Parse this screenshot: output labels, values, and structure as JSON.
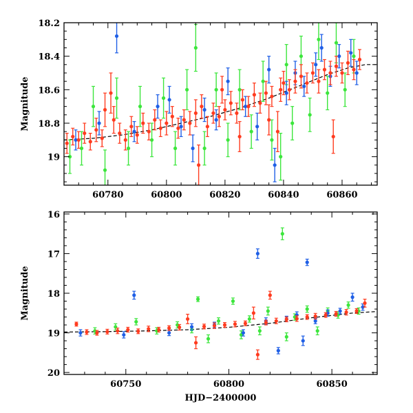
{
  "chart_data": [
    {
      "type": "scatter",
      "panel": "top",
      "ylabel": "Magnitude",
      "xlabel": "",
      "xlim": [
        60765,
        60872
      ],
      "ylim": [
        19.17,
        18.2
      ],
      "y_inverted": true,
      "x_ticks": [
        60780,
        60800,
        60820,
        60840,
        60860
      ],
      "y_ticks": [
        18.2,
        18.4,
        18.6,
        18.8,
        19
      ],
      "y_tick_labels": [
        "18.2",
        "18.4",
        "18.6",
        "18.8",
        "19"
      ],
      "colors": {
        "red": "#ff3b1f",
        "green": "#3ce63c",
        "blue": "#1f5fe6",
        "fit": "#000000"
      },
      "fit_curve": {
        "style": "dashed",
        "x": [
          60765,
          60775,
          60785,
          60795,
          60805,
          60815,
          60825,
          60835,
          60845,
          60855,
          60862,
          60868,
          60872
        ],
        "y": [
          18.9,
          18.89,
          18.87,
          18.84,
          18.8,
          18.76,
          18.71,
          18.65,
          18.58,
          18.51,
          18.47,
          18.45,
          18.45
        ]
      },
      "series": [
        {
          "color": "red",
          "points": [
            [
              60766,
              18.92,
              0.06
            ],
            [
              60768,
              18.88,
              0.05
            ],
            [
              60770,
              18.9,
              0.05
            ],
            [
              60772,
              18.86,
              0.06
            ],
            [
              60774,
              18.91,
              0.05
            ],
            [
              60776,
              18.84,
              0.07
            ],
            [
              60778,
              18.89,
              0.05
            ],
            [
              60779,
              18.72,
              0.1
            ],
            [
              60781,
              18.62,
              0.12
            ],
            [
              60782,
              18.78,
              0.08
            ],
            [
              60784,
              18.86,
              0.06
            ],
            [
              60786,
              18.9,
              0.06
            ],
            [
              60788,
              18.82,
              0.06
            ],
            [
              60790,
              18.87,
              0.05
            ],
            [
              60792,
              18.8,
              0.06
            ],
            [
              60794,
              18.85,
              0.05
            ],
            [
              60796,
              18.78,
              0.06
            ],
            [
              60798,
              18.83,
              0.05
            ],
            [
              60800,
              18.8,
              0.07
            ],
            [
              60802,
              18.76,
              0.06
            ],
            [
              60804,
              18.83,
              0.06
            ],
            [
              60806,
              18.78,
              0.06
            ],
            [
              60808,
              18.8,
              0.07
            ],
            [
              60810,
              18.74,
              0.08
            ],
            [
              60811,
              19.05,
              0.12
            ],
            [
              60812,
              18.7,
              0.07
            ],
            [
              60814,
              18.82,
              0.06
            ],
            [
              60816,
              18.74,
              0.06
            ],
            [
              60818,
              18.76,
              0.06
            ],
            [
              60819,
              18.6,
              0.08
            ],
            [
              60820,
              18.72,
              0.06
            ],
            [
              60822,
              18.68,
              0.07
            ],
            [
              60824,
              18.74,
              0.06
            ],
            [
              60825,
              18.88,
              0.09
            ],
            [
              60826,
              18.66,
              0.06
            ],
            [
              60828,
              18.7,
              0.06
            ],
            [
              60830,
              18.63,
              0.07
            ],
            [
              60832,
              18.68,
              0.06
            ],
            [
              60834,
              18.62,
              0.07
            ],
            [
              60835,
              18.78,
              0.09
            ],
            [
              60836,
              18.64,
              0.06
            ],
            [
              60838,
              18.85,
              0.12
            ],
            [
              60839,
              18.6,
              0.07
            ],
            [
              60840,
              18.56,
              0.07
            ],
            [
              60842,
              18.6,
              0.06
            ],
            [
              60844,
              18.55,
              0.07
            ],
            [
              60846,
              18.52,
              0.07
            ],
            [
              60848,
              18.56,
              0.06
            ],
            [
              60850,
              18.5,
              0.06
            ],
            [
              60852,
              18.55,
              0.07
            ],
            [
              60854,
              18.48,
              0.06
            ],
            [
              60856,
              18.5,
              0.07
            ],
            [
              60857,
              18.88,
              0.1
            ],
            [
              60858,
              18.46,
              0.06
            ],
            [
              60860,
              18.5,
              0.06
            ],
            [
              60862,
              18.44,
              0.07
            ],
            [
              60864,
              18.48,
              0.06
            ],
            [
              60866,
              18.42,
              0.06
            ]
          ]
        },
        {
          "color": "green",
          "points": [
            [
              60767,
              19.0,
              0.1
            ],
            [
              60771,
              18.95,
              0.1
            ],
            [
              60775,
              18.7,
              0.12
            ],
            [
              60779,
              19.08,
              0.12
            ],
            [
              60783,
              18.65,
              0.12
            ],
            [
              60787,
              18.95,
              0.1
            ],
            [
              60791,
              18.7,
              0.12
            ],
            [
              60795,
              18.9,
              0.1
            ],
            [
              60799,
              18.65,
              0.12
            ],
            [
              60803,
              18.95,
              0.1
            ],
            [
              60807,
              18.6,
              0.12
            ],
            [
              60810,
              18.35,
              0.14
            ],
            [
              60813,
              18.95,
              0.1
            ],
            [
              60817,
              18.6,
              0.1
            ],
            [
              60821,
              18.9,
              0.1
            ],
            [
              60825,
              18.6,
              0.12
            ],
            [
              60829,
              18.85,
              0.1
            ],
            [
              60833,
              18.55,
              0.12
            ],
            [
              60836,
              18.9,
              0.12
            ],
            [
              60839,
              19.0,
              0.14
            ],
            [
              60841,
              18.45,
              0.12
            ],
            [
              60843,
              18.8,
              0.1
            ],
            [
              60846,
              18.4,
              0.12
            ],
            [
              60849,
              18.75,
              0.1
            ],
            [
              60852,
              18.3,
              0.12
            ],
            [
              60855,
              18.62,
              0.1
            ],
            [
              60858,
              18.32,
              0.12
            ],
            [
              60861,
              18.6,
              0.1
            ],
            [
              60864,
              18.4,
              0.1
            ]
          ]
        },
        {
          "color": "blue",
          "points": [
            [
              60769,
              18.9,
              0.06
            ],
            [
              60777,
              18.8,
              0.07
            ],
            [
              60783,
              18.28,
              0.1
            ],
            [
              60789,
              18.85,
              0.06
            ],
            [
              60797,
              18.7,
              0.07
            ],
            [
              60801,
              18.66,
              0.08
            ],
            [
              60805,
              18.82,
              0.06
            ],
            [
              60809,
              18.95,
              0.08
            ],
            [
              60813,
              18.72,
              0.07
            ],
            [
              60817,
              18.78,
              0.06
            ],
            [
              60821,
              18.55,
              0.08
            ],
            [
              60827,
              18.7,
              0.06
            ],
            [
              60831,
              18.82,
              0.08
            ],
            [
              60835,
              18.48,
              0.08
            ],
            [
              60837,
              19.05,
              0.1
            ],
            [
              60841,
              18.62,
              0.07
            ],
            [
              60844,
              18.5,
              0.07
            ],
            [
              60847,
              18.58,
              0.06
            ],
            [
              60851,
              18.45,
              0.07
            ],
            [
              60853,
              18.35,
              0.08
            ],
            [
              60856,
              18.52,
              0.06
            ],
            [
              60859,
              18.4,
              0.07
            ],
            [
              60863,
              18.38,
              0.08
            ],
            [
              60865,
              18.5,
              0.07
            ]
          ]
        }
      ]
    },
    {
      "type": "scatter",
      "panel": "bottom",
      "ylabel": "Magnitude",
      "xlabel": "HJD−2400000",
      "xlim": [
        60720,
        60872
      ],
      "ylim": [
        20.05,
        15.95
      ],
      "y_inverted": true,
      "x_ticks": [
        60750,
        60800,
        60850
      ],
      "y_ticks": [
        16,
        17,
        18,
        19,
        20
      ],
      "y_tick_labels": [
        "16",
        "17",
        "18",
        "19",
        "20"
      ],
      "colors": {
        "red": "#ff3b1f",
        "green": "#3ce63c",
        "blue": "#1f5fe6",
        "fit": "#000000"
      },
      "fit_curve": {
        "style": "dashed",
        "x": [
          60720,
          60740,
          60760,
          60780,
          60800,
          60820,
          60840,
          60860,
          60872
        ],
        "y": [
          18.98,
          18.97,
          18.95,
          18.92,
          18.86,
          18.76,
          18.62,
          18.5,
          18.46
        ]
      },
      "series": [
        {
          "color": "red",
          "points": [
            [
              60726,
              18.78,
              0.05
            ],
            [
              60731,
              18.98,
              0.06
            ],
            [
              60736,
              19.0,
              0.06
            ],
            [
              60741,
              18.97,
              0.06
            ],
            [
              60746,
              18.95,
              0.07
            ],
            [
              60751,
              18.92,
              0.06
            ],
            [
              60756,
              18.96,
              0.06
            ],
            [
              60761,
              18.9,
              0.07
            ],
            [
              60766,
              18.92,
              0.06
            ],
            [
              60771,
              18.88,
              0.06
            ],
            [
              60776,
              18.86,
              0.07
            ],
            [
              60780,
              18.65,
              0.12
            ],
            [
              60784,
              19.25,
              0.15
            ],
            [
              60788,
              18.84,
              0.06
            ],
            [
              60793,
              18.82,
              0.07
            ],
            [
              60798,
              18.8,
              0.06
            ],
            [
              60803,
              18.78,
              0.07
            ],
            [
              60808,
              18.76,
              0.06
            ],
            [
              60812,
              18.5,
              0.15
            ],
            [
              60814,
              19.55,
              0.12
            ],
            [
              60818,
              18.74,
              0.06
            ],
            [
              60820,
              18.05,
              0.1
            ],
            [
              60823,
              18.7,
              0.07
            ],
            [
              60828,
              18.66,
              0.06
            ],
            [
              60833,
              18.64,
              0.07
            ],
            [
              60838,
              18.6,
              0.06
            ],
            [
              60842,
              18.58,
              0.07
            ],
            [
              60847,
              18.55,
              0.06
            ],
            [
              60852,
              18.52,
              0.06
            ],
            [
              60857,
              18.48,
              0.07
            ],
            [
              60862,
              18.45,
              0.06
            ],
            [
              60866,
              18.25,
              0.1
            ]
          ]
        },
        {
          "color": "green",
          "points": [
            [
              60735,
              18.95,
              0.08
            ],
            [
              60745,
              18.85,
              0.08
            ],
            [
              60755,
              18.72,
              0.08
            ],
            [
              60765,
              18.95,
              0.08
            ],
            [
              60775,
              18.8,
              0.08
            ],
            [
              60782,
              18.92,
              0.08
            ],
            [
              60785,
              18.15,
              0.06
            ],
            [
              60790,
              19.15,
              0.1
            ],
            [
              60795,
              18.7,
              0.08
            ],
            [
              60802,
              18.2,
              0.08
            ],
            [
              60806,
              19.05,
              0.1
            ],
            [
              60810,
              18.65,
              0.08
            ],
            [
              60815,
              18.95,
              0.1
            ],
            [
              60819,
              18.45,
              0.1
            ],
            [
              60826,
              16.5,
              0.15
            ],
            [
              60828,
              19.1,
              0.1
            ],
            [
              60832,
              18.6,
              0.08
            ],
            [
              60838,
              18.4,
              0.08
            ],
            [
              60843,
              18.95,
              0.1
            ],
            [
              60848,
              18.45,
              0.08
            ],
            [
              60853,
              18.55,
              0.08
            ],
            [
              60858,
              18.3,
              0.08
            ],
            [
              60863,
              18.45,
              0.08
            ]
          ]
        },
        {
          "color": "blue",
          "points": [
            [
              60728,
              19.0,
              0.08
            ],
            [
              60749,
              19.05,
              0.08
            ],
            [
              60754,
              18.05,
              0.1
            ],
            [
              60771,
              19.0,
              0.07
            ],
            [
              60782,
              18.85,
              0.08
            ],
            [
              60793,
              18.8,
              0.07
            ],
            [
              60807,
              19.0,
              0.08
            ],
            [
              60814,
              17.0,
              0.12
            ],
            [
              60818,
              18.7,
              0.08
            ],
            [
              60824,
              19.45,
              0.08
            ],
            [
              60828,
              18.65,
              0.07
            ],
            [
              60833,
              18.55,
              0.08
            ],
            [
              60836,
              19.2,
              0.12
            ],
            [
              60838,
              17.22,
              0.08
            ],
            [
              60842,
              18.7,
              0.07
            ],
            [
              60848,
              18.5,
              0.08
            ],
            [
              60854,
              18.45,
              0.07
            ],
            [
              60860,
              18.1,
              0.1
            ],
            [
              60865,
              18.35,
              0.08
            ]
          ]
        }
      ]
    }
  ]
}
